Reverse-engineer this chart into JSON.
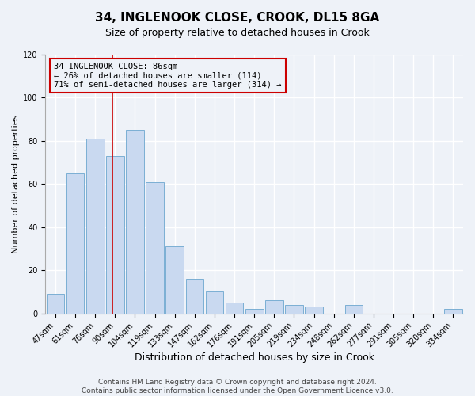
{
  "title": "34, INGLENOOK CLOSE, CROOK, DL15 8GA",
  "subtitle": "Size of property relative to detached houses in Crook",
  "xlabel": "Distribution of detached houses by size in Crook",
  "ylabel": "Number of detached properties",
  "bar_labels": [
    "47sqm",
    "61sqm",
    "76sqm",
    "90sqm",
    "104sqm",
    "119sqm",
    "133sqm",
    "147sqm",
    "162sqm",
    "176sqm",
    "191sqm",
    "205sqm",
    "219sqm",
    "234sqm",
    "248sqm",
    "262sqm",
    "277sqm",
    "291sqm",
    "305sqm",
    "320sqm",
    "334sqm"
  ],
  "bar_heights": [
    9,
    65,
    81,
    73,
    85,
    61,
    31,
    16,
    10,
    5,
    2,
    6,
    4,
    3,
    0,
    4,
    0,
    0,
    0,
    0,
    2
  ],
  "bar_color": "#c9d9f0",
  "bar_edge_color": "#7bafd4",
  "vline_x": 2.85,
  "vline_color": "#cc0000",
  "ylim": [
    0,
    120
  ],
  "annotation_box_text": "34 INGLENOOK CLOSE: 86sqm\n← 26% of detached houses are smaller (114)\n71% of semi-detached houses are larger (314) →",
  "footer_line1": "Contains HM Land Registry data © Crown copyright and database right 2024.",
  "footer_line2": "Contains public sector information licensed under the Open Government Licence v3.0.",
  "background_color": "#eef2f8",
  "grid_color": "#ffffff",
  "title_fontsize": 11,
  "xlabel_fontsize": 9,
  "ylabel_fontsize": 8,
  "tick_fontsize": 7,
  "footer_fontsize": 6.5,
  "annotation_fontsize": 7.5
}
